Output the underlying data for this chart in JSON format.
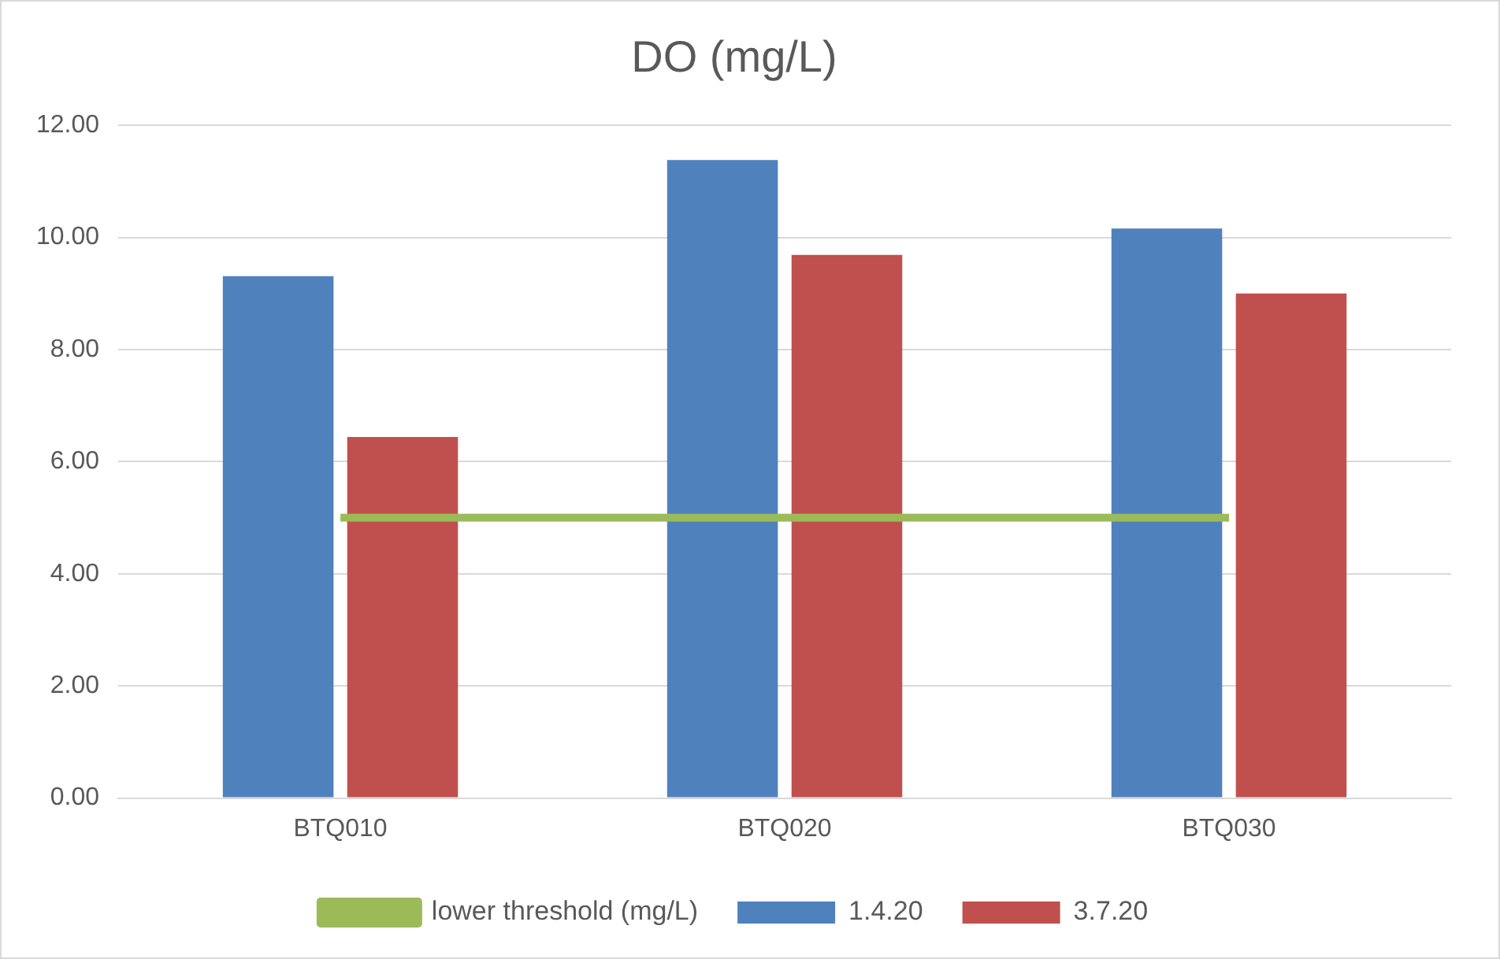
{
  "chart_data": {
    "type": "bar",
    "title": "DO (mg/L)",
    "categories": [
      "BTQ010",
      "BTQ020",
      "BTQ030"
    ],
    "series": [
      {
        "name": "1.4.20",
        "color": "#4f81bd",
        "values": [
          9.31,
          11.38,
          10.16
        ]
      },
      {
        "name": "3.7.20",
        "color": "#c0504d",
        "values": [
          6.44,
          9.69,
          9.0
        ]
      },
      {
        "name": "lower threshold (mg/L)",
        "type": "line",
        "color": "#9bbb59",
        "values": [
          5,
          5,
          5
        ]
      }
    ],
    "ylim": [
      0,
      12
    ],
    "yticks": [
      {
        "value": 0,
        "label": "0.00"
      },
      {
        "value": 2,
        "label": "2.00"
      },
      {
        "value": 4,
        "label": "4.00"
      },
      {
        "value": 6,
        "label": "6.00"
      },
      {
        "value": 8,
        "label": "8.00"
      },
      {
        "value": 10,
        "label": "10.00"
      },
      {
        "value": 12,
        "label": "12.00"
      }
    ],
    "grid": "y",
    "legend": "bottom",
    "marker": "none",
    "line_style": "solid"
  }
}
